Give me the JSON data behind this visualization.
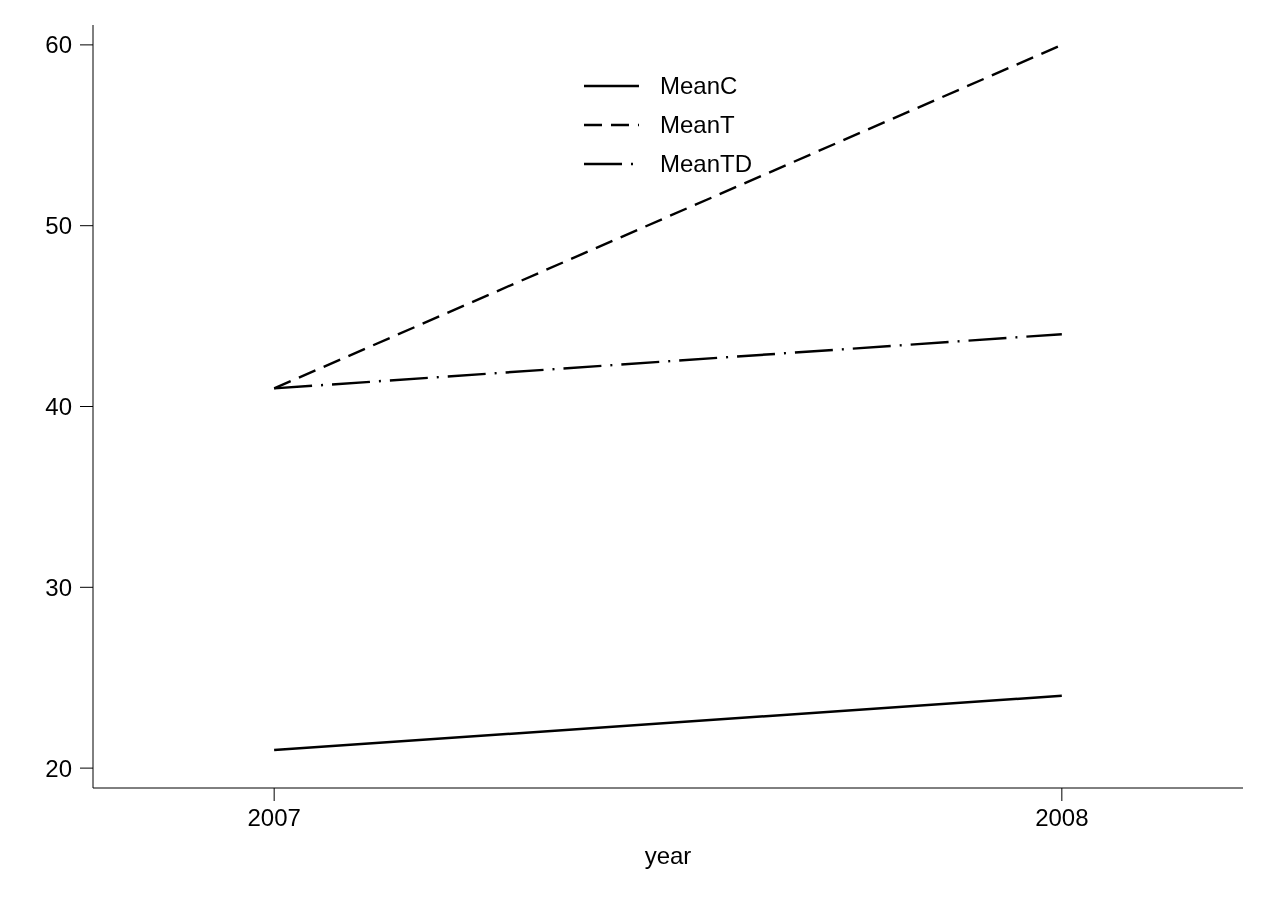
{
  "chart_data": {
    "type": "line",
    "xlabel": "year",
    "x": [
      2007,
      2008
    ],
    "series": [
      {
        "name": "MeanC",
        "color": "#000000",
        "values": [
          21,
          24
        ],
        "line_style": "solid"
      },
      {
        "name": "MeanT",
        "color": "#000000",
        "values": [
          41,
          60
        ],
        "line_style": "dashed"
      },
      {
        "name": "MeanTD",
        "color": "#000000",
        "values": [
          41,
          44
        ],
        "line_style": "dashdot"
      }
    ],
    "xlim": [
      2006.77,
      2008.23
    ],
    "xticks": [
      2007,
      2008
    ],
    "ylim": [
      18.9,
      61.1
    ],
    "yticks": [
      20,
      30,
      40,
      50,
      60
    ],
    "legend": "top"
  }
}
